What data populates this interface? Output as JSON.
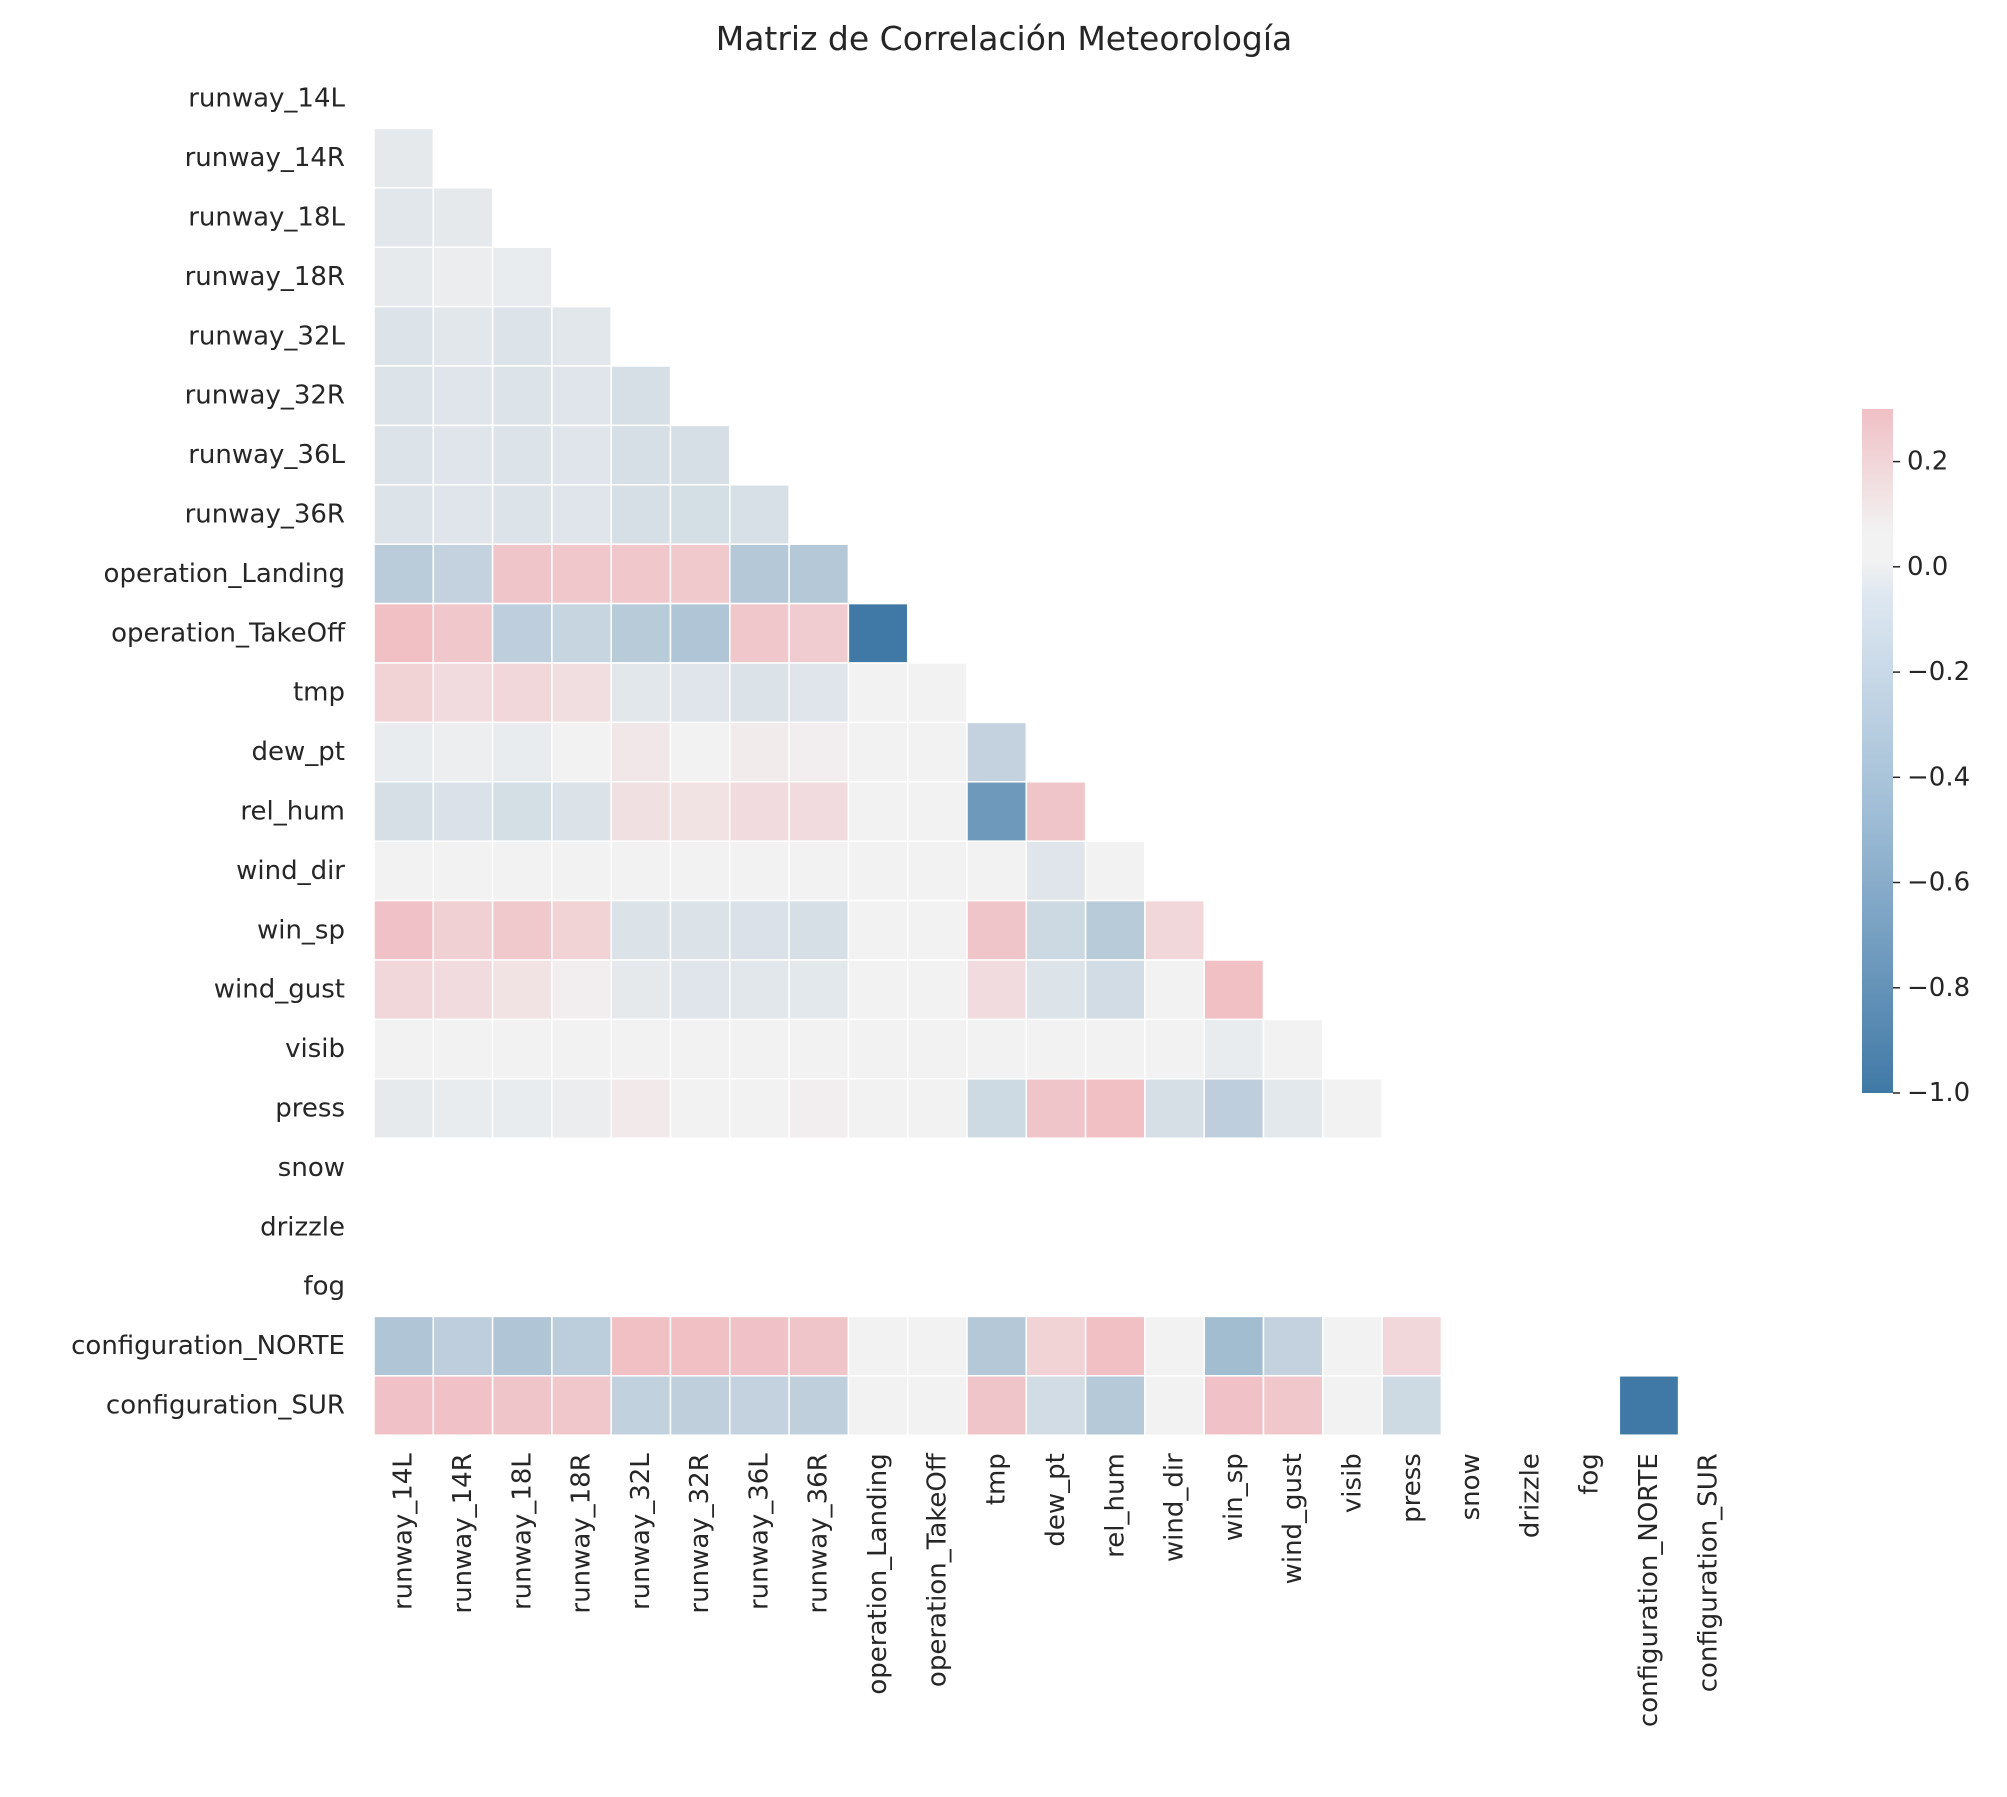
{
  "chart_data": {
    "type": "heatmap",
    "title": "Matriz de Correlación Meteorología",
    "variables": [
      "runway_14L",
      "runway_14R",
      "runway_18L",
      "runway_18R",
      "runway_32L",
      "runway_32R",
      "runway_36L",
      "runway_36R",
      "operation_Landing",
      "operation_TakeOff",
      "tmp",
      "dew_pt",
      "rel_hum",
      "wind_dir",
      "win_sp",
      "wind_gust",
      "visib",
      "press",
      "snow",
      "drizzle",
      "fog",
      "configuration_NORTE",
      "configuration_SUR"
    ],
    "mask": "upper-triangle",
    "missing_rows": [
      "snow",
      "drizzle",
      "fog"
    ],
    "missing_cols": [
      "snow",
      "drizzle",
      "fog"
    ],
    "rows": [
      [],
      [
        -0.12
      ],
      [
        -0.14,
        -0.12
      ],
      [
        -0.11,
        -0.09,
        -0.1
      ],
      [
        -0.16,
        -0.14,
        -0.16,
        -0.14
      ],
      [
        -0.16,
        -0.15,
        -0.16,
        -0.15,
        -0.2
      ],
      [
        -0.16,
        -0.15,
        -0.16,
        -0.15,
        -0.2,
        -0.2
      ],
      [
        -0.16,
        -0.15,
        -0.16,
        -0.15,
        -0.2,
        -0.21,
        -0.19
      ],
      [
        -0.35,
        -0.3,
        0.28,
        0.27,
        0.27,
        0.26,
        -0.38,
        -0.38
      ],
      [
        0.3,
        0.27,
        -0.33,
        -0.28,
        -0.36,
        -0.4,
        0.27,
        0.25,
        -1.0
      ],
      [
        0.22,
        0.18,
        0.2,
        0.17,
        -0.14,
        -0.15,
        -0.17,
        -0.15,
        0.0,
        0.0
      ],
      [
        -0.1,
        -0.08,
        -0.1,
        0.0,
        0.13,
        0.02,
        0.11,
        0.1,
        0.0,
        0.0,
        -0.3
      ],
      [
        -0.2,
        -0.18,
        -0.21,
        -0.17,
        0.16,
        0.15,
        0.18,
        0.18,
        0.0,
        0.0,
        -0.75,
        0.28
      ],
      [
        0.0,
        0.0,
        0.0,
        0.0,
        0.0,
        0.0,
        0.0,
        0.0,
        0.0,
        0.0,
        0.0,
        -0.15,
        0.0
      ],
      [
        0.29,
        0.23,
        0.26,
        0.22,
        -0.17,
        -0.17,
        -0.18,
        -0.2,
        0.0,
        0.0,
        0.28,
        -0.25,
        -0.36,
        0.2
      ],
      [
        0.2,
        0.18,
        0.15,
        0.1,
        -0.12,
        -0.15,
        -0.14,
        -0.13,
        0.0,
        0.0,
        0.18,
        -0.16,
        -0.22,
        0.0,
        0.3
      ],
      [
        0.0,
        0.0,
        0.0,
        0.0,
        0.0,
        0.0,
        0.0,
        0.0,
        0.0,
        0.0,
        0.0,
        0.0,
        0.0,
        0.0,
        -0.1,
        0.0
      ],
      [
        -0.11,
        -0.1,
        -0.1,
        -0.09,
        0.12,
        0.0,
        0.0,
        0.1,
        0.0,
        0.0,
        -0.24,
        0.28,
        0.3,
        -0.2,
        -0.33,
        -0.13,
        0.0
      ],
      [],
      [],
      [],
      [
        -0.4,
        -0.33,
        -0.4,
        -0.34,
        0.3,
        0.3,
        0.29,
        0.28,
        0.0,
        0.0,
        -0.38,
        0.22,
        0.3,
        0.0,
        -0.47,
        -0.3,
        0.0,
        0.2,
        null,
        null,
        null
      ],
      [
        0.29,
        0.29,
        0.28,
        0.27,
        -0.31,
        -0.32,
        -0.3,
        -0.32,
        0.0,
        0.0,
        0.28,
        -0.22,
        -0.37,
        0.0,
        0.29,
        0.27,
        0.0,
        -0.24,
        null,
        null,
        null,
        -1.0
      ]
    ],
    "vmin": -1.0,
    "vmax": 0.3,
    "colormap": {
      "low_color": "#4079a6",
      "center_color": "#f2f2f2",
      "high_color": "#f0c0c5",
      "neutral_band": [
        -0.05,
        0.08
      ]
    },
    "colorbar": {
      "ticks": [
        0.2,
        0.0,
        -0.2,
        -0.4,
        -0.6,
        -0.8,
        -1.0
      ],
      "tick_labels": [
        "0.2",
        "0.0",
        "−0.2",
        "−0.4",
        "−0.6",
        "−0.8",
        "−1.0"
      ],
      "position": "right"
    },
    "grid": false
  }
}
